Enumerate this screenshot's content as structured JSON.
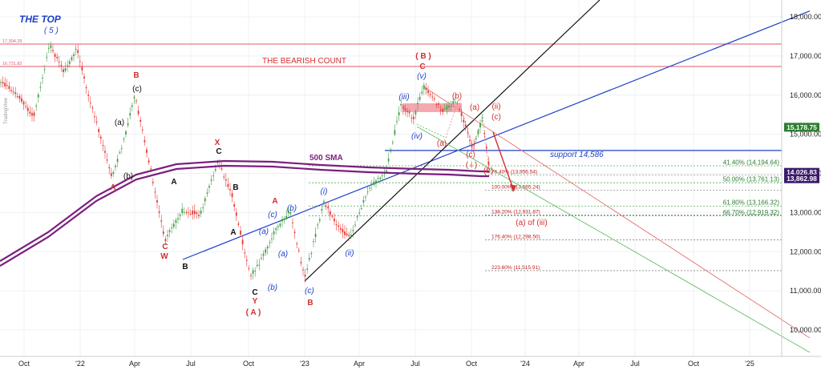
{
  "chart_data": {
    "type": "candlestick",
    "title": "THE TOP",
    "top_wave_label": "( 5 )",
    "bearish_label": "THE BEARISH COUNT",
    "sma_label": "500 SMA",
    "support_label": "support 14,586",
    "watermark": "TradingView",
    "ylim": [
      9500,
      18500
    ],
    "y_ticks": [
      "10,000.00",
      "11,000.00",
      "12,000.00",
      "13,000.00",
      "14,000.00",
      "15,000.00",
      "16,000.00",
      "17,000.00",
      "18,000.00"
    ],
    "x_ticks": [
      "Oct",
      "'22",
      "Apr",
      "Jul",
      "Oct",
      "'23",
      "Apr",
      "Jul",
      "Oct",
      "'24",
      "Apr",
      "Jul",
      "Oct",
      "'25"
    ],
    "price_badges": [
      {
        "text": "15,178.75",
        "value": 15178.75,
        "color": "#2e7d32"
      },
      {
        "text": "14,026.83",
        "value": 14026.83,
        "color": "#3b1a6b"
      },
      {
        "text": "13,862.98",
        "value": 13862.98,
        "color": "#3b1a6b"
      }
    ],
    "horizontal_levels": [
      {
        "text": "17,304.29",
        "value": 17304.29,
        "color": "#e05a6a"
      },
      {
        "text": "16,731.82",
        "value": 16731.82,
        "color": "#e05a6a"
      }
    ],
    "fib_green": [
      {
        "text": "41.40% (14,194.64)",
        "value": 14194.64
      },
      {
        "text": "50.00% (13,761.13)",
        "value": 13761.13
      },
      {
        "text": "61.80% (13,166.32)",
        "value": 13166.32
      },
      {
        "text": "66.70% (12,919.32)",
        "value": 12919.32
      }
    ],
    "fib_red": [
      {
        "text": "76.40% (13,956.54)",
        "value": 13956.54
      },
      {
        "text": "100.00% (13,565.24)",
        "value": 13565.24
      },
      {
        "text": "138.20% (12,931.87)",
        "value": 12931.87
      },
      {
        "text": "176.40% (12,298.50)",
        "value": 12298.5
      },
      {
        "text": "223.60% (11,515.91)",
        "value": 11515.91
      }
    ],
    "wave_labels": [
      {
        "text": "B",
        "x": 170,
        "y": 97,
        "color": "#d32f2f",
        "bold": true
      },
      {
        "text": "(c)",
        "x": 171,
        "y": 114,
        "color": "#111",
        "bold": false
      },
      {
        "text": "(a)",
        "x": 149,
        "y": 156,
        "color": "#111",
        "bold": false
      },
      {
        "text": "A",
        "x": 141,
        "y": 237,
        "color": "#d32f2f",
        "bold": true
      },
      {
        "text": "(b)",
        "x": 160,
        "y": 223,
        "color": "#111",
        "bold": false
      },
      {
        "text": "A",
        "x": 217,
        "y": 230,
        "color": "#111",
        "bold": true
      },
      {
        "text": "C",
        "x": 206,
        "y": 311,
        "color": "#d32f2f",
        "bold": true
      },
      {
        "text": "W",
        "x": 205,
        "y": 323,
        "color": "#d32f2f",
        "bold": true
      },
      {
        "text": "B",
        "x": 231,
        "y": 336,
        "color": "#111",
        "bold": true
      },
      {
        "text": "X",
        "x": 271,
        "y": 181,
        "color": "#d32f2f",
        "bold": true
      },
      {
        "text": "C",
        "x": 273,
        "y": 192,
        "color": "#111",
        "bold": true
      },
      {
        "text": "B",
        "x": 294,
        "y": 237,
        "color": "#111",
        "bold": true
      },
      {
        "text": "A",
        "x": 291,
        "y": 293,
        "color": "#111",
        "bold": true
      },
      {
        "text": "A",
        "x": 343,
        "y": 254,
        "color": "#d32f2f",
        "bold": true
      },
      {
        "text": "(c)",
        "x": 340,
        "y": 271,
        "color": "#1e3fc8",
        "bold": false
      },
      {
        "text": "(b)",
        "x": 364,
        "y": 263,
        "color": "#1e3fc8",
        "bold": false
      },
      {
        "text": "(a)",
        "x": 329,
        "y": 292,
        "color": "#1e3fc8",
        "bold": false
      },
      {
        "text": "(a)",
        "x": 353,
        "y": 320,
        "color": "#1e3fc8",
        "bold": false
      },
      {
        "text": "(b)",
        "x": 340,
        "y": 362,
        "color": "#1e3fc8",
        "bold": false
      },
      {
        "text": "C",
        "x": 318,
        "y": 368,
        "color": "#111",
        "bold": true
      },
      {
        "text": "Y",
        "x": 318,
        "y": 379,
        "color": "#d32f2f",
        "bold": true
      },
      {
        "text": "( A )",
        "x": 316,
        "y": 393,
        "color": "#d32f2f",
        "bold": true
      },
      {
        "text": "(c)",
        "x": 386,
        "y": 366,
        "color": "#1e3fc8",
        "bold": false
      },
      {
        "text": "B",
        "x": 387,
        "y": 381,
        "color": "#d32f2f",
        "bold": true
      },
      {
        "text": "(i)",
        "x": 404,
        "y": 242,
        "color": "#1e3fc8",
        "bold": false
      },
      {
        "text": "(ii)",
        "x": 436,
        "y": 319,
        "color": "#1e3fc8",
        "bold": false
      },
      {
        "text": "(iii)",
        "x": 504,
        "y": 124,
        "color": "#1e3fc8",
        "bold": false
      },
      {
        "text": "(iv)",
        "x": 520,
        "y": 173,
        "color": "#1e3fc8",
        "bold": false
      },
      {
        "text": "( B )",
        "x": 528,
        "y": 73,
        "color": "#d32f2f",
        "bold": true
      },
      {
        "text": "C",
        "x": 527,
        "y": 86,
        "color": "#d32f2f",
        "bold": true
      },
      {
        "text": "(v)",
        "x": 526,
        "y": 98,
        "color": "#1e3fc8",
        "bold": false
      },
      {
        "text": "(b)",
        "x": 570,
        "y": 123,
        "color": "#d32f2f",
        "bold": false
      },
      {
        "text": "(a)",
        "x": 592,
        "y": 137,
        "color": "#d32f2f",
        "bold": false
      },
      {
        "text": "(ii)",
        "x": 619,
        "y": 136,
        "color": "#d32f2f",
        "bold": false
      },
      {
        "text": "(c)",
        "x": 619,
        "y": 149,
        "color": "#d32f2f",
        "bold": false
      },
      {
        "text": "(a)",
        "x": 551,
        "y": 182,
        "color": "#d32f2f",
        "bold": false
      },
      {
        "text": "(c)",
        "x": 587,
        "y": 196,
        "color": "#d32f2f",
        "bold": false
      },
      {
        "text": "( i )",
        "x": 588,
        "y": 209,
        "color": "#d32f2f",
        "bold": false
      },
      {
        "text": "(b)",
        "x": 609,
        "y": 216,
        "color": "#d32f2f",
        "bold": false
      },
      {
        "text": "(a) of (iii)",
        "x": 663,
        "y": 281,
        "color": "#d32f2f",
        "bold": false
      }
    ]
  }
}
